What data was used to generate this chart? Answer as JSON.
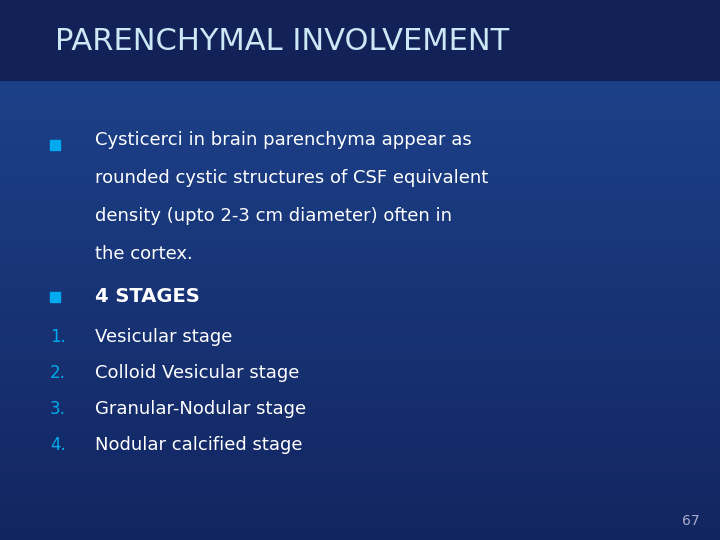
{
  "title": "PARENCHYMAL INVOLVEMENT",
  "title_color": "#cce8f4",
  "title_fontsize": 22,
  "bg_top": "#122560",
  "bg_bottom": "#1a3a7a",
  "bullet_color": "#00aaee",
  "number_color": "#00aaee",
  "text_color": "#FFFFFF",
  "bullet1_lines": [
    "Cysticerci in brain parenchyma appear as",
    "rounded cystic structures of CSF equivalent",
    "density (upto 2-3 cm diameter) often in",
    "the cortex."
  ],
  "bullet2": "4 STAGES",
  "numbered_items": [
    "Vesicular stage",
    "Colloid Vesicular stage",
    "Granular-Nodular stage",
    "Nodular calcified stage"
  ],
  "page_number": "67",
  "page_number_color": "#aaaacc"
}
